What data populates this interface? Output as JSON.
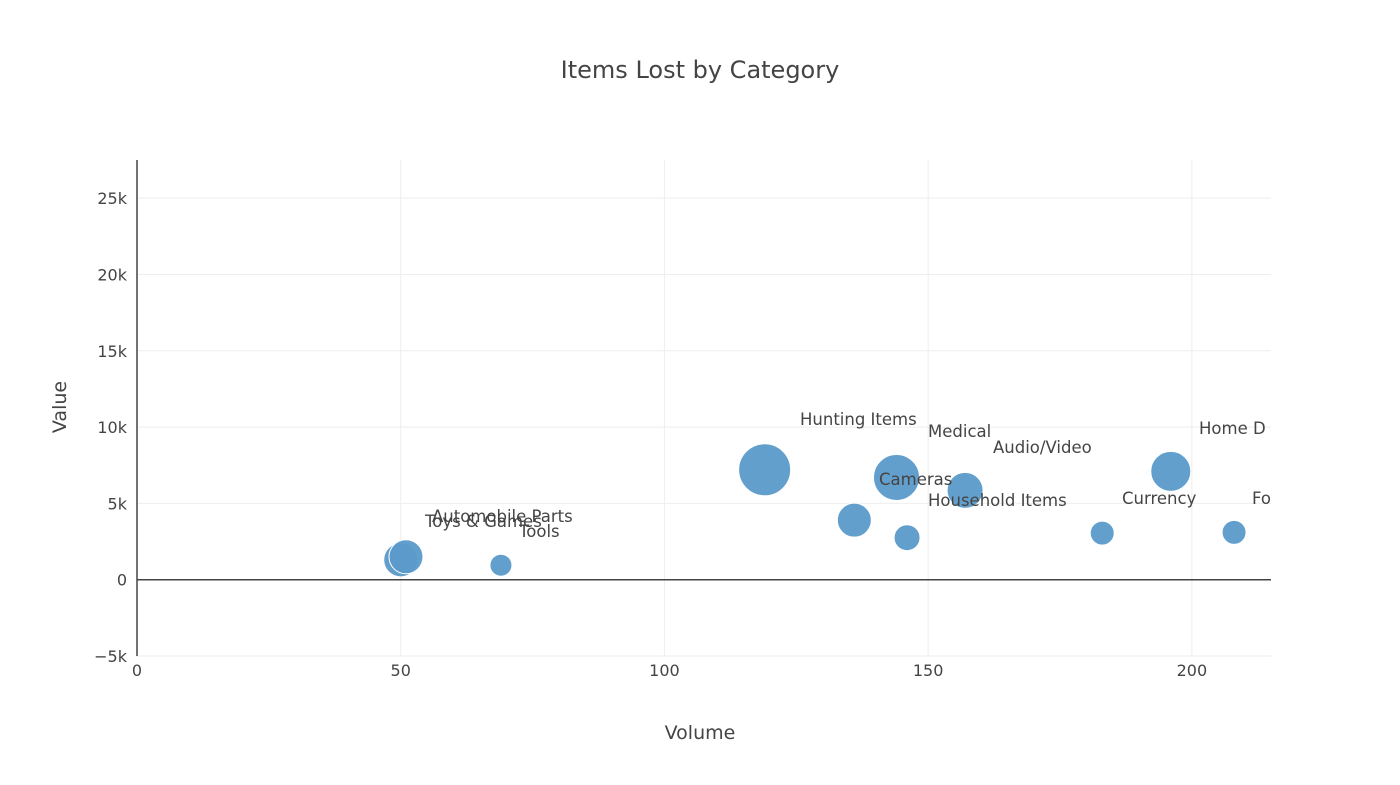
{
  "chart_data": {
    "type": "scatter",
    "title": "Items Lost by Category",
    "xlabel": "Volume",
    "ylabel": "Value",
    "xlim": [
      0,
      215
    ],
    "ylim": [
      -5000,
      27500
    ],
    "x_ticks": [
      {
        "value": 0,
        "label": "0"
      },
      {
        "value": 50,
        "label": "50"
      },
      {
        "value": 100,
        "label": "100"
      },
      {
        "value": 150,
        "label": "150"
      },
      {
        "value": 200,
        "label": "200"
      }
    ],
    "y_ticks": [
      {
        "value": -5000,
        "label": "−5k"
      },
      {
        "value": 0,
        "label": "0"
      },
      {
        "value": 5000,
        "label": "5k"
      },
      {
        "value": 10000,
        "label": "10k"
      },
      {
        "value": 15000,
        "label": "15k"
      },
      {
        "value": 20000,
        "label": "20k"
      },
      {
        "value": 25000,
        "label": "25k"
      }
    ],
    "grid": true,
    "marker_color": "#5b9aca",
    "points": [
      {
        "label": "Toys & Games",
        "x": 50,
        "y": 1300,
        "size": 17
      },
      {
        "label": "Automobile Parts",
        "x": 51,
        "y": 1500,
        "size": 17
      },
      {
        "label": "Tools",
        "x": 69,
        "y": 950,
        "size": 11
      },
      {
        "label": "Hunting Items",
        "x": 119,
        "y": 7200,
        "size": 26
      },
      {
        "label": "",
        "x": 136,
        "y": 3900,
        "size": 17
      },
      {
        "label": "Medical",
        "x": 144,
        "y": 6700,
        "size": 23
      },
      {
        "label": "Cameras",
        "x": 146,
        "y": 2750,
        "size": 13
      },
      {
        "label": "Audio/Video",
        "x": 157,
        "y": 5850,
        "size": 18
      },
      {
        "label": "Household Items",
        "x": 183,
        "y": 3050,
        "size": 12
      },
      {
        "label": "Home D",
        "x": 196,
        "y": 7100,
        "size": 20
      },
      {
        "label": "Currency",
        "x": 208,
        "y": 3100,
        "size": 12
      },
      {
        "label": "Fo",
        "x": 0,
        "y": 0,
        "size": 0
      }
    ]
  }
}
